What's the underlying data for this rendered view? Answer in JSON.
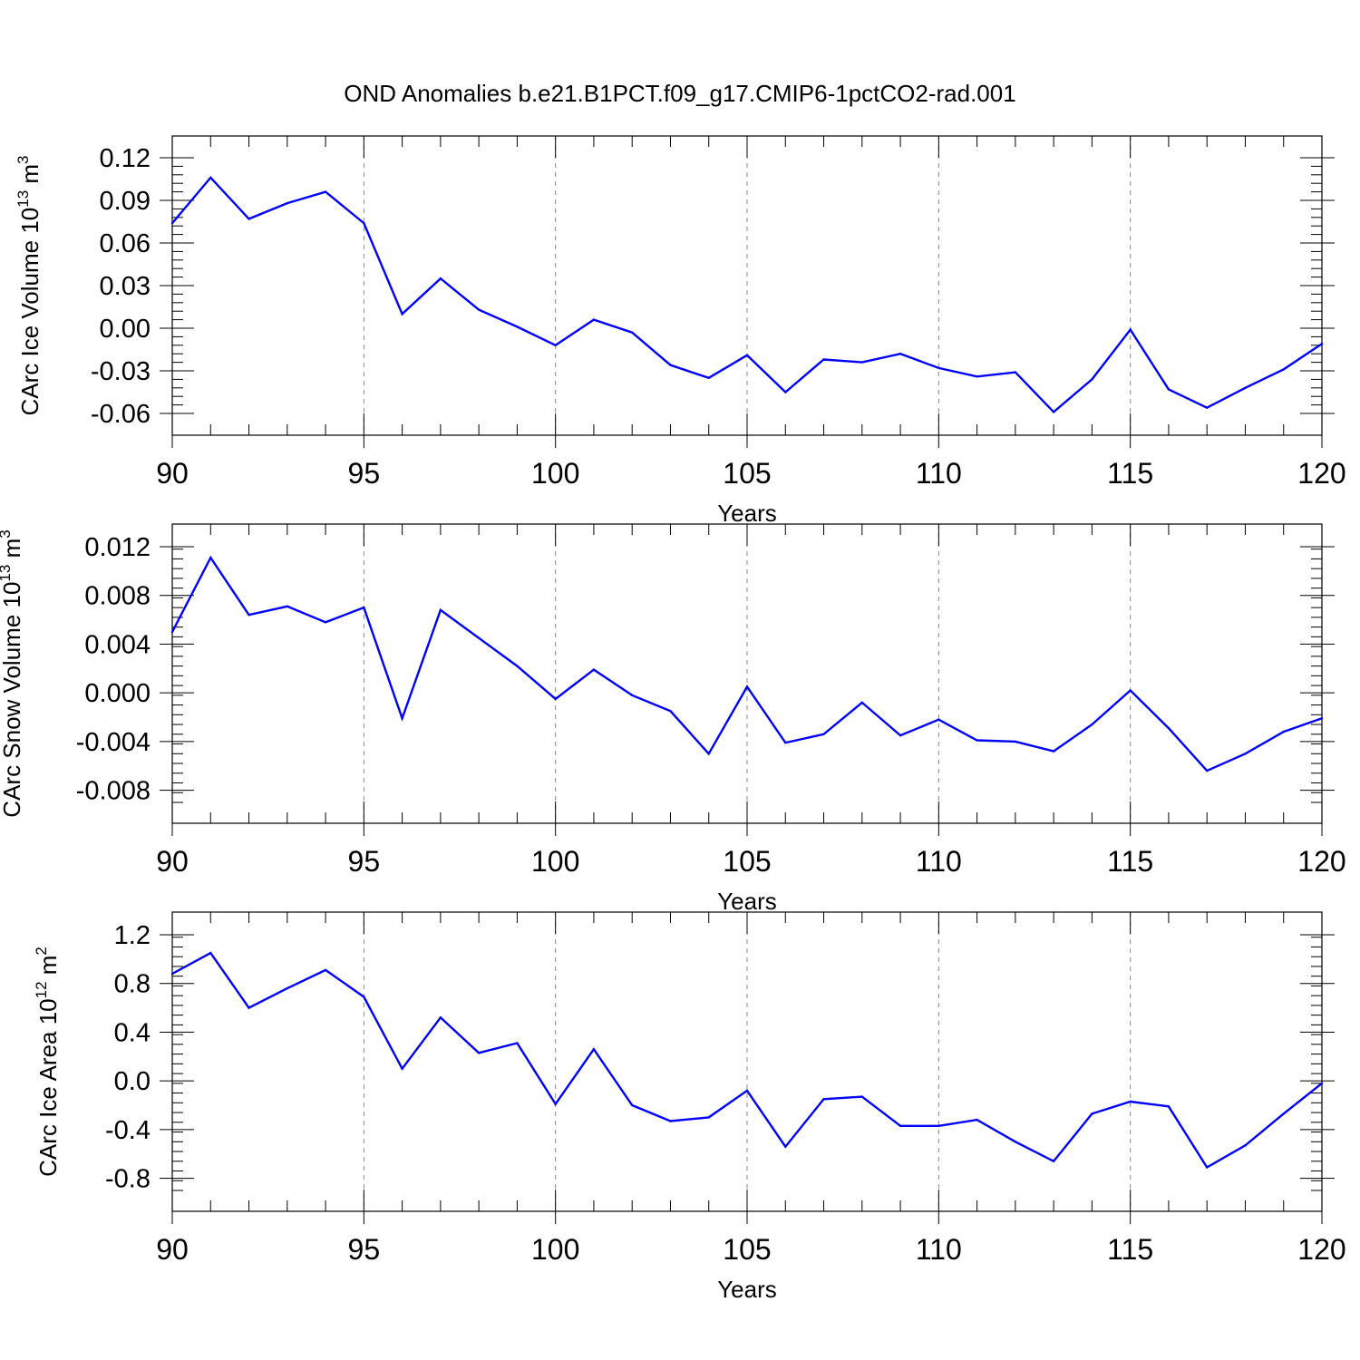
{
  "title": "OND Anomalies b.e21.B1PCT.f09_g17.CMIP6-1pctCO2-rad.001",
  "line_color": "#0000ff",
  "chart_data": [
    {
      "type": "line",
      "xlabel": "Years",
      "ylabel": "CArc Ice Volume 10",
      "ylabel_exp": "13",
      "ylabel_unit": " m",
      "ylabel_unit_exp": "3",
      "xlim": [
        90,
        120
      ],
      "ylim": [
        -0.06,
        0.12
      ],
      "x_ticks": [
        "90",
        "95",
        "100",
        "105",
        "110",
        "115",
        "120"
      ],
      "y_ticks": [
        "0.12",
        "0.09",
        "0.06",
        "0.03",
        "0.00",
        "-0.03",
        "-0.06"
      ],
      "grid": "vertical dashed at x-ticks",
      "x": [
        90,
        91,
        92,
        93,
        94,
        95,
        96,
        97,
        98,
        99,
        100,
        101,
        102,
        103,
        104,
        105,
        106,
        107,
        108,
        109,
        110,
        111,
        112,
        113,
        114,
        115,
        116,
        117,
        118,
        119,
        120
      ],
      "values": [
        0.074,
        0.106,
        0.077,
        0.088,
        0.096,
        0.074,
        0.01,
        0.035,
        0.013,
        0.001,
        -0.012,
        0.006,
        -0.003,
        -0.026,
        -0.035,
        -0.019,
        -0.045,
        -0.022,
        -0.024,
        -0.018,
        -0.028,
        -0.034,
        -0.031,
        -0.059,
        -0.036,
        -0.001,
        -0.043,
        -0.056,
        -0.042,
        -0.029,
        -0.011
      ]
    },
    {
      "type": "line",
      "xlabel": "Years",
      "ylabel": "CArc Snow Volume 10",
      "ylabel_exp": "13",
      "ylabel_unit": " m",
      "ylabel_unit_exp": "3",
      "xlim": [
        90,
        120
      ],
      "ylim": [
        -0.009,
        0.012
      ],
      "x_ticks": [
        "90",
        "95",
        "100",
        "105",
        "110",
        "115",
        "120"
      ],
      "y_ticks": [
        "0.012",
        "0.008",
        "0.004",
        "0.000",
        "-0.004",
        "-0.008"
      ],
      "grid": "vertical dashed at x-ticks",
      "x": [
        90,
        91,
        92,
        93,
        94,
        95,
        96,
        97,
        98,
        99,
        100,
        101,
        102,
        103,
        104,
        105,
        106,
        107,
        108,
        109,
        110,
        111,
        112,
        113,
        114,
        115,
        116,
        117,
        118,
        119,
        120
      ],
      "values": [
        0.005,
        0.0111,
        0.0064,
        0.0071,
        0.0058,
        0.007,
        -0.0021,
        0.0068,
        0.0045,
        0.0022,
        -0.0005,
        0.0019,
        -0.0002,
        -0.0015,
        -0.005,
        0.0005,
        -0.0041,
        -0.0034,
        -0.0008,
        -0.0035,
        -0.0022,
        -0.0039,
        -0.004,
        -0.0048,
        -0.0026,
        0.0002,
        -0.0029,
        -0.0064,
        -0.005,
        -0.0032,
        -0.0021
      ]
    },
    {
      "type": "line",
      "xlabel": "Years",
      "ylabel": "CArc Ice Area 10",
      "ylabel_exp": "12",
      "ylabel_unit": " m",
      "ylabel_unit_exp": "2",
      "xlim": [
        90,
        120
      ],
      "ylim": [
        -0.9,
        1.2
      ],
      "x_ticks": [
        "90",
        "95",
        "100",
        "105",
        "110",
        "115",
        "120"
      ],
      "y_ticks": [
        "1.2",
        "0.8",
        "0.4",
        "0.0",
        "-0.4",
        "-0.8"
      ],
      "grid": "vertical dashed at x-ticks",
      "x": [
        90,
        91,
        92,
        93,
        94,
        95,
        96,
        97,
        98,
        99,
        100,
        101,
        102,
        103,
        104,
        105,
        106,
        107,
        108,
        109,
        110,
        111,
        112,
        113,
        114,
        115,
        116,
        117,
        118,
        119,
        120
      ],
      "values": [
        0.88,
        1.05,
        0.6,
        0.76,
        0.91,
        0.69,
        0.1,
        0.52,
        0.23,
        0.31,
        -0.19,
        0.26,
        -0.2,
        -0.33,
        -0.3,
        -0.08,
        -0.54,
        -0.15,
        -0.13,
        -0.37,
        -0.37,
        -0.32,
        -0.5,
        -0.66,
        -0.27,
        -0.17,
        -0.21,
        -0.71,
        -0.53,
        -0.27,
        -0.02
      ]
    }
  ]
}
